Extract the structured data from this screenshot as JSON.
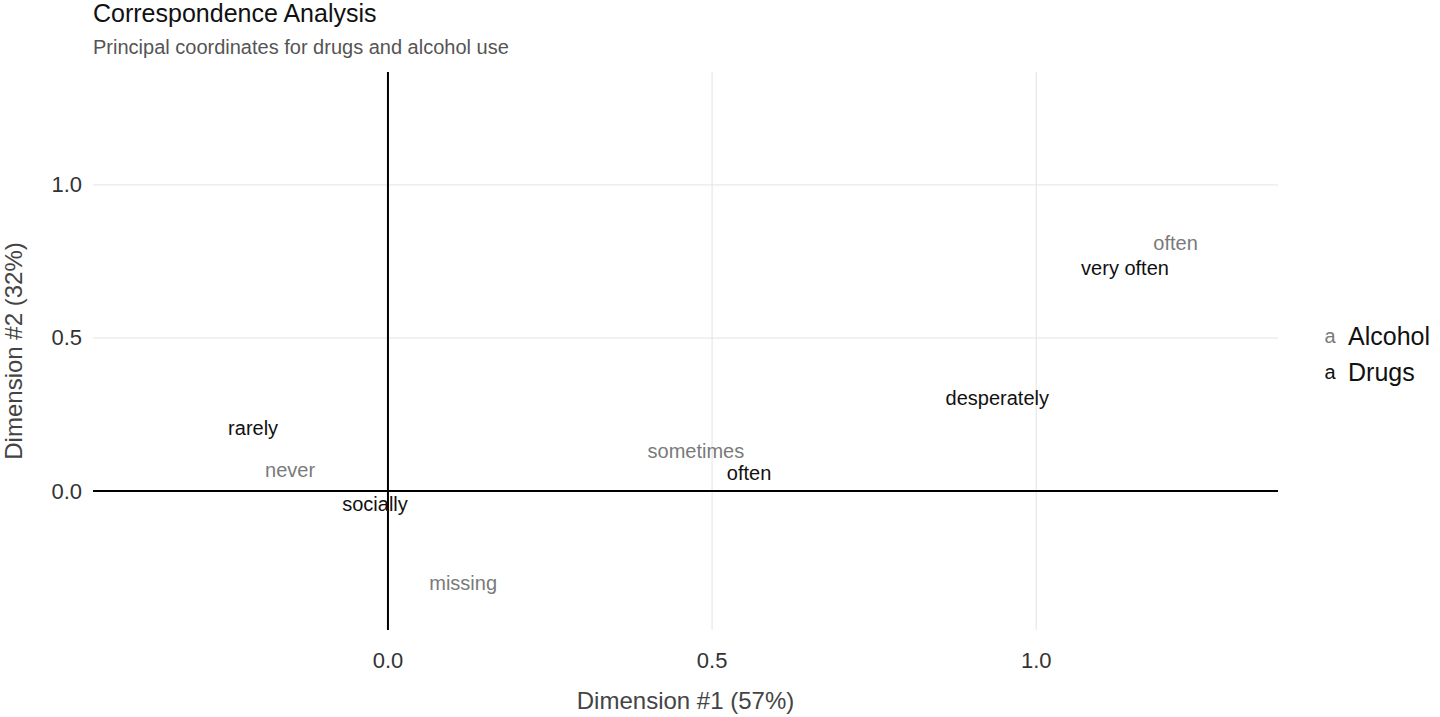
{
  "chart_data": {
    "type": "scatter",
    "title": "Correspondence Analysis",
    "subtitle": "Principal coordinates for drugs and alcohol use",
    "x_label": "Dimension #1 (57%)",
    "y_label": "Dimension #2 (32%)",
    "xlim": [
      -0.455,
      1.373
    ],
    "ylim": [
      -0.454,
      1.369
    ],
    "xticks": [
      {
        "value": 0,
        "label": "0.0"
      },
      {
        "value": 0.5,
        "label": "0.5"
      },
      {
        "value": 1,
        "label": "1.0"
      }
    ],
    "yticks": [
      {
        "value": 0,
        "label": "0.0"
      },
      {
        "value": 0.5,
        "label": "0.5"
      },
      {
        "value": 1,
        "label": "1.0"
      }
    ],
    "grid": true,
    "legend": "right",
    "marker": "a",
    "series": [
      {
        "name": "Alcohol",
        "color": "#7a7a7a",
        "labels": [
          "often",
          "never",
          "sometimes",
          "missing"
        ],
        "x": [
          1.215,
          -0.151,
          0.475,
          0.116
        ],
        "values": [
          0.81,
          0.069,
          0.131,
          -0.301
        ]
      },
      {
        "name": "Drugs",
        "color": "#111111",
        "labels": [
          "very often",
          "desperately",
          "rarely",
          "often",
          "socially"
        ],
        "x": [
          1.137,
          0.94,
          -0.208,
          0.557,
          -0.02
        ],
        "values": [
          0.729,
          0.304,
          0.206,
          0.059,
          -0.042
        ]
      }
    ]
  }
}
